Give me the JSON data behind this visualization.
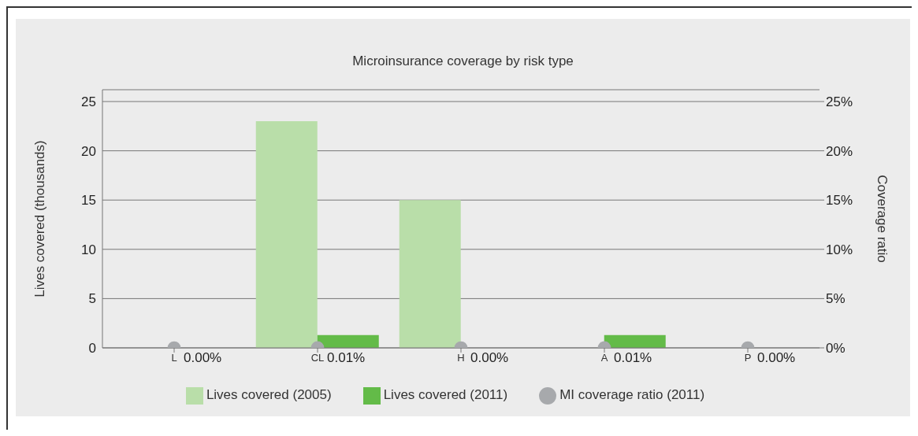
{
  "chart_data": {
    "type": "bar",
    "title": "Microinsurance coverage by risk type",
    "categories": [
      "L",
      "CL",
      "H",
      "A",
      "P"
    ],
    "series": [
      {
        "name": "Lives covered (2005)",
        "color": "#b9dea9",
        "values": [
          0,
          23,
          15,
          0,
          0
        ]
      },
      {
        "name": "Lives covered (2011)",
        "color": "#63bb48",
        "values": [
          0,
          1.3,
          0,
          1.3,
          0
        ]
      },
      {
        "name": "MI coverage ratio (2011)",
        "type": "scatter",
        "axis": "y2",
        "color": "#a7a9ac",
        "values": [
          0,
          0.01,
          0,
          0.01,
          0
        ],
        "value_labels": [
          "0.00%",
          "0.01%",
          "0.00%",
          "0.01%",
          "0.00%"
        ]
      }
    ],
    "ylabel": "Lives covered (thousands)",
    "y2label": "Coverage ratio",
    "ylim": [
      0,
      26.2
    ],
    "yticks": [
      0,
      5,
      10,
      15,
      20,
      25
    ],
    "y2lim": [
      0,
      26.2
    ],
    "y2ticks": [
      {
        "value": 0,
        "label": "0%"
      },
      {
        "value": 5,
        "label": "5%"
      },
      {
        "value": 10,
        "label": "10%"
      },
      {
        "value": 15,
        "label": "15%"
      },
      {
        "value": 20,
        "label": "20%"
      },
      {
        "value": 25,
        "label": "25%"
      }
    ],
    "grid": "y",
    "legend": "bottom",
    "marker": "circle"
  }
}
